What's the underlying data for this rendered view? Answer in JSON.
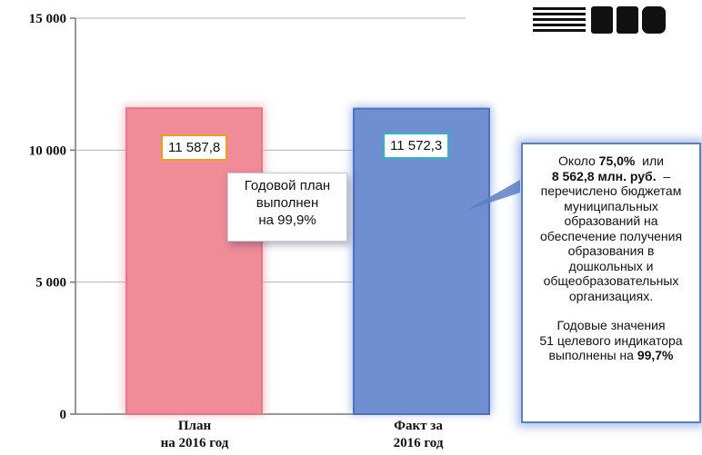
{
  "chart_data": {
    "type": "bar",
    "categories": [
      "План на 2016 год",
      "Факт за 2016 год"
    ],
    "category_lines": [
      [
        "План",
        "на 2016 год"
      ],
      [
        "Факт за",
        "2016 год"
      ]
    ],
    "values": [
      11587.8,
      11572.3
    ],
    "data_labels": [
      "11 587,8",
      "11 572,3"
    ],
    "bar_colors": [
      "#f08c98",
      "#6f8fd1"
    ],
    "ylim": [
      0,
      15000
    ],
    "yticks": [
      0,
      5000,
      10000,
      15000
    ],
    "ytick_labels": [
      "0",
      "5 000",
      "10 000",
      "15 000"
    ],
    "grid": true
  },
  "callout_plan": [
    "Годовой план",
    "выполнен",
    "на 99,9%"
  ],
  "callout_info": {
    "line1_pre": "Около ",
    "line1_pct": "75,0%",
    "line1_post": "  или",
    "line2_amount": "8 562,8 млн. руб.",
    "line2_post": "  –",
    "body": [
      "перечислено бюджетам",
      "муниципальных",
      "образований на",
      "обеспечение получения",
      "образования в",
      "дошкольных и",
      "общеобразовательных",
      "организациях."
    ],
    "tail": [
      "Годовые значения",
      "51 целевого индикатора"
    ],
    "last_pre": "выполнены на ",
    "last_pct": "99,7%"
  }
}
